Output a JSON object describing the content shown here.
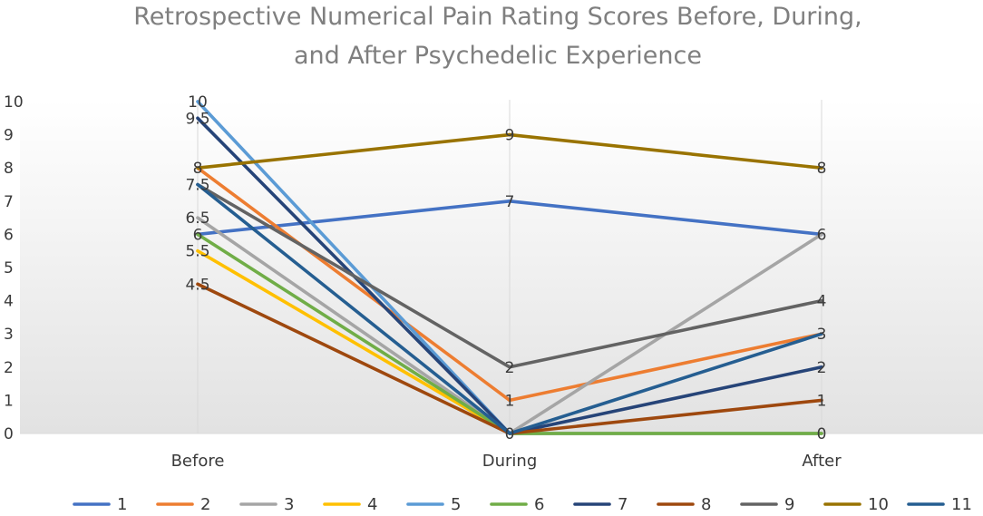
{
  "chart_data": {
    "type": "line",
    "title_line1": "Retrospective Numerical Pain Rating Scores Before, During,",
    "title_line2": "and After Psychedelic Experience",
    "categories": [
      "Before",
      "During",
      "After"
    ],
    "ylim": [
      0,
      10
    ],
    "yticks": [
      "0",
      "1",
      "2",
      "3",
      "4",
      "5",
      "6",
      "7",
      "8",
      "9",
      "10"
    ],
    "legend_position": "bottom",
    "series": [
      {
        "name": "1",
        "color": "#4472c4",
        "values": [
          6,
          7,
          6
        ]
      },
      {
        "name": "2",
        "color": "#ed7d31",
        "values": [
          8,
          1,
          3
        ]
      },
      {
        "name": "3",
        "color": "#a5a5a5",
        "values": [
          6.5,
          0,
          6
        ]
      },
      {
        "name": "4",
        "color": "#ffc000",
        "values": [
          5.5,
          0,
          0
        ]
      },
      {
        "name": "5",
        "color": "#5b9bd5",
        "values": [
          10,
          0,
          0
        ]
      },
      {
        "name": "6",
        "color": "#70ad47",
        "values": [
          6,
          0,
          0
        ]
      },
      {
        "name": "7",
        "color": "#264478",
        "values": [
          9.5,
          0,
          2
        ]
      },
      {
        "name": "8",
        "color": "#9e480e",
        "values": [
          4.5,
          0,
          1
        ]
      },
      {
        "name": "9",
        "color": "#636363",
        "values": [
          7.5,
          2,
          4
        ]
      },
      {
        "name": "10",
        "color": "#997300",
        "values": [
          8,
          9,
          8
        ]
      },
      {
        "name": "11",
        "color": "#255e91",
        "values": [
          7.5,
          0,
          3
        ]
      }
    ],
    "data_labels": [
      {
        "category": "Before",
        "value": 10,
        "text": "10"
      },
      {
        "category": "Before",
        "value": 9.5,
        "text": "9.5"
      },
      {
        "category": "Before",
        "value": 8,
        "text": "8"
      },
      {
        "category": "Before",
        "value": 7.5,
        "text": "7.5"
      },
      {
        "category": "Before",
        "value": 6.5,
        "text": "6.5"
      },
      {
        "category": "Before",
        "value": 6,
        "text": "6"
      },
      {
        "category": "Before",
        "value": 5.5,
        "text": "5.5"
      },
      {
        "category": "Before",
        "value": 4.5,
        "text": "4.5"
      },
      {
        "category": "During",
        "value": 9,
        "text": "9"
      },
      {
        "category": "During",
        "value": 7,
        "text": "7"
      },
      {
        "category": "During",
        "value": 2,
        "text": "2"
      },
      {
        "category": "During",
        "value": 1,
        "text": "1"
      },
      {
        "category": "During",
        "value": 0,
        "text": "0"
      },
      {
        "category": "After",
        "value": 8,
        "text": "8"
      },
      {
        "category": "After",
        "value": 6,
        "text": "6"
      },
      {
        "category": "After",
        "value": 4,
        "text": "4"
      },
      {
        "category": "After",
        "value": 3,
        "text": "3"
      },
      {
        "category": "After",
        "value": 2,
        "text": "2"
      },
      {
        "category": "After",
        "value": 1,
        "text": "1"
      },
      {
        "category": "After",
        "value": 0,
        "text": "0"
      }
    ]
  }
}
